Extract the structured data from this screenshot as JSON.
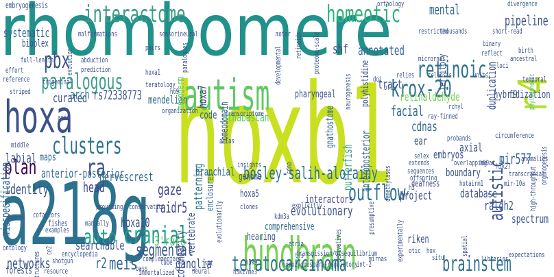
{
  "words": [
    {
      "text": "rhombomere",
      "color": "#21918c"
    },
    {
      "text": "hoxb1",
      "color": "#c8e020"
    },
    {
      "text": "a218g",
      "color": "#2c728e"
    },
    {
      "text": "hindbrain",
      "color": "#75d054"
    },
    {
      "text": "autism",
      "color": "#5ec962"
    },
    {
      "text": "hoxa",
      "color": "#3b528b"
    },
    {
      "text": "interactome",
      "color": "#3e9d87"
    },
    {
      "text": "homeotic",
      "color": "#2db27d"
    },
    {
      "text": "paralogous",
      "color": "#3e9d87"
    },
    {
      "text": "retinoic",
      "color": "#2c728e"
    },
    {
      "text": "pbx",
      "color": "#3b528b"
    },
    {
      "text": "krox-20",
      "color": "#2c728e"
    },
    {
      "text": "r4",
      "color": "#b5de2b"
    },
    {
      "text": "clusters",
      "color": "#2c728e"
    },
    {
      "text": "plan",
      "color": "#440154"
    },
    {
      "text": "ra",
      "color": "#3b528b"
    },
    {
      "text": "bosley-salih-alorainy",
      "color": "#2c728e"
    },
    {
      "text": "outflow",
      "color": "#2c728e"
    },
    {
      "text": "auto",
      "color": "#1f9e89"
    },
    {
      "text": "cranial",
      "color": "#1f9e89"
    },
    {
      "text": "teratocarcinoma",
      "color": "#2c728e"
    },
    {
      "text": "brainstem",
      "color": "#2c728e"
    },
    {
      "text": "segmental",
      "color": "#3b528b"
    },
    {
      "text": "meis",
      "color": "#31688e"
    },
    {
      "text": "autistic",
      "color": "#3b528b"
    },
    {
      "text": "mental",
      "color": "#31688e"
    },
    {
      "text": "shf",
      "color": "#414487"
    },
    {
      "text": "annotated",
      "color": "#31688e"
    },
    {
      "text": "pipeline",
      "color": "#3b528b"
    },
    {
      "text": "mir577",
      "color": "#31688e"
    },
    {
      "text": "raidr5",
      "color": "#414487"
    },
    {
      "text": "hoxa10",
      "color": "#3b528b"
    },
    {
      "text": "gaze",
      "color": "#414487"
    },
    {
      "text": "3'rare",
      "color": "#5ec962"
    },
    {
      "text": "r2",
      "color": "#31688e"
    },
    {
      "text": "r3",
      "color": "#31688e"
    },
    {
      "text": "head",
      "color": "#414487"
    },
    {
      "text": "nervescrest",
      "color": "#31688e"
    },
    {
      "text": "identity",
      "color": "#3b528b"
    },
    {
      "text": "anterior-posterior",
      "color": "#31688e"
    },
    {
      "text": "labial",
      "color": "#3b528b"
    },
    {
      "text": "maps",
      "color": "#31688e"
    },
    {
      "text": "curated",
      "color": "#3b528b"
    },
    {
      "text": "arch",
      "color": "#2c728e"
    },
    {
      "text": "rs72338773",
      "color": "#3b528b"
    },
    {
      "text": "systematic",
      "color": "#31688e"
    },
    {
      "text": "biοplex",
      "color": "#3b528b"
    },
    {
      "text": "misspecification",
      "color": "#31688e"
    },
    {
      "text": "embryogenesis",
      "color": "#3b528b"
    },
    {
      "text": "networks",
      "color": "#3b528b"
    },
    {
      "text": "searchable",
      "color": "#3b528b"
    },
    {
      "text": "ganglia",
      "color": "#3b528b"
    },
    {
      "text": "forests",
      "color": "#3b528b"
    },
    {
      "text": "colinearity",
      "color": "#3b528b"
    },
    {
      "text": "mendelian",
      "color": "#31688e"
    },
    {
      "text": "mesoderm",
      "color": "#5ec962"
    },
    {
      "text": "hoxa7",
      "color": "#414487"
    },
    {
      "text": "homeodomain",
      "color": "#3b528b"
    },
    {
      "text": "athabascan",
      "color": "#5ec962"
    },
    {
      "text": "code",
      "color": "#31688e"
    },
    {
      "text": "patterning",
      "color": "#2c728e"
    },
    {
      "text": "branchial",
      "color": "#31688e"
    },
    {
      "text": "vertebrate",
      "color": "#3b528b"
    },
    {
      "text": "enclosures",
      "color": "#31688e"
    },
    {
      "text": "gnathostome",
      "color": "#31688e"
    },
    {
      "text": "tract",
      "color": "#3b528b"
    },
    {
      "text": "pharyngeal",
      "color": "#3b528b"
    },
    {
      "text": "retinaldehyde",
      "color": "#75d054"
    },
    {
      "text": "facial",
      "color": "#31688e"
    },
    {
      "text": "pufferfish",
      "color": "#3e9d87"
    },
    {
      "text": "anteroposterior",
      "color": "#31688e"
    },
    {
      "text": "polyhistidine",
      "color": "#3b528b"
    },
    {
      "text": "territory",
      "color": "#3b528b"
    },
    {
      "text": "duplication",
      "color": "#3b528b"
    },
    {
      "text": "hybridization",
      "color": "#3b528b"
    },
    {
      "text": "cdnas",
      "color": "#31688e"
    },
    {
      "text": "ear",
      "color": "#3b528b"
    },
    {
      "text": "embryos",
      "color": "#3b528b"
    },
    {
      "text": "axial",
      "color": "#3b528b"
    },
    {
      "text": "boundary",
      "color": "#3b528b"
    },
    {
      "text": "project",
      "color": "#3b528b"
    },
    {
      "text": "database",
      "color": "#3b528b"
    },
    {
      "text": "raldh2",
      "color": "#3b528b"
    },
    {
      "text": "spectrum",
      "color": "#3b528b"
    },
    {
      "text": "interactors",
      "color": "#414487"
    },
    {
      "text": "evolutionary",
      "color": "#3b528b"
    },
    {
      "text": "hearing",
      "color": "#3b528b"
    },
    {
      "text": "genome",
      "color": "#3b528b"
    },
    {
      "text": "hoxa5",
      "color": "#3b528b"
    },
    {
      "text": "comprehensive",
      "color": "#31688e"
    },
    {
      "text": "riken",
      "color": "#3b528b"
    },
    {
      "text": "f9",
      "color": "#3b528b"
    },
    {
      "text": "orthology",
      "color": "#3b528b"
    },
    {
      "text": "divergence",
      "color": "#31688e"
    },
    {
      "text": "phylogenetic",
      "color": "#5ec962"
    },
    {
      "text": "mir-10a",
      "color": "#3b528b"
    },
    {
      "text": "deafness",
      "color": "#414487"
    },
    {
      "text": "hotairm1",
      "color": "#3b528b"
    },
    {
      "text": "h69ar",
      "color": "#3b528b"
    },
    {
      "text": "h3k27",
      "color": "#3b528b"
    },
    {
      "text": "h3k9",
      "color": "#3b528b"
    },
    {
      "text": "h3k27me3",
      "color": "#3b528b"
    },
    {
      "text": "mirnas",
      "color": "#3b528b"
    },
    {
      "text": "libraries",
      "color": "#3b528b"
    },
    {
      "text": "expectations",
      "color": "#3b528b"
    },
    {
      "text": "situ",
      "color": "#3b528b"
    },
    {
      "text": "spatial",
      "color": "#3b528b"
    },
    {
      "text": "homozygous",
      "color": "#3b528b"
    },
    {
      "text": "para-regulatory",
      "color": "#3b528b"
    },
    {
      "text": "int-2",
      "color": "#3b528b"
    },
    {
      "text": "transmission/disequilibrium",
      "color": "#3b528b"
    },
    {
      "text": "experimentally",
      "color": "#3b528b"
    },
    {
      "text": "derivatives",
      "color": "#3b528b"
    },
    {
      "text": "tfs",
      "color": "#3b528b"
    },
    {
      "text": "atria",
      "color": "#3b528b"
    },
    {
      "text": "tube",
      "color": "#3b528b"
    },
    {
      "text": "set",
      "color": "#3b528b"
    },
    {
      "text": "shotgun",
      "color": "#3b528b"
    },
    {
      "text": "bass",
      "color": "#3b528b"
    },
    {
      "text": "complementary",
      "color": "#3b528b"
    },
    {
      "text": "neural",
      "color": "#3b528b"
    },
    {
      "text": "immortalized",
      "color": "#3b528b"
    },
    {
      "text": "resource",
      "color": "#3b528b"
    },
    {
      "text": "ce2",
      "color": "#3b528b"
    },
    {
      "text": "structures",
      "color": "#3b528b"
    },
    {
      "text": "ontology",
      "color": "#3b528b"
    },
    {
      "text": "encyclopedia",
      "color": "#3b528b"
    },
    {
      "text": "examples",
      "color": "#3b528b"
    },
    {
      "text": "fishes",
      "color": "#3b528b"
    },
    {
      "text": "cofactors",
      "color": "#3b528b"
    },
    {
      "text": "manually",
      "color": "#3b528b"
    },
    {
      "text": "providing",
      "color": "#3b528b"
    },
    {
      "text": "fourth",
      "color": "#3b528b"
    },
    {
      "text": "conservation",
      "color": "#3b528b"
    },
    {
      "text": "reference",
      "color": "#3b528b"
    },
    {
      "text": "middle",
      "color": "#3b528b"
    },
    {
      "text": "axis",
      "color": "#3b528b"
    },
    {
      "text": "striped",
      "color": "#3b528b"
    },
    {
      "text": "trigeminal",
      "color": "#3b528b"
    },
    {
      "text": "effort",
      "color": "#3b528b"
    },
    {
      "text": "full-length",
      "color": "#3b528b"
    },
    {
      "text": "evolution",
      "color": "#3b528b"
    },
    {
      "text": "malformations",
      "color": "#3b528b"
    },
    {
      "text": "abduction",
      "color": "#3b528b"
    },
    {
      "text": "prediction",
      "color": "#3b528b"
    },
    {
      "text": "sensorineural",
      "color": "#3b528b"
    },
    {
      "text": "pairs",
      "color": "#3b528b"
    },
    {
      "text": "hoxa1",
      "color": "#3b528b"
    },
    {
      "text": "paralogues",
      "color": "#3b528b"
    },
    {
      "text": "teratology",
      "color": "#3b528b"
    },
    {
      "text": "h69",
      "color": "#3b528b"
    },
    {
      "text": "organization",
      "color": "#3b528b"
    },
    {
      "text": "transcriptome",
      "color": "#3b528b"
    },
    {
      "text": "atlas",
      "color": "#3b528b"
    },
    {
      "text": "insights",
      "color": "#3b528b"
    },
    {
      "text": "clones",
      "color": "#3b528b"
    },
    {
      "text": "evolutionarily",
      "color": "#3b528b"
    },
    {
      "text": "kdm3a",
      "color": "#3b528b"
    },
    {
      "text": "explicitly",
      "color": "#3b528b"
    },
    {
      "text": "cdna",
      "color": "#3b528b"
    },
    {
      "text": "presumptive",
      "color": "#3b528b"
    },
    {
      "text": "demethylases",
      "color": "#3b528b"
    },
    {
      "text": "extends",
      "color": "#3b528b"
    },
    {
      "text": "sequences",
      "color": "#3b528b"
    },
    {
      "text": "offspring",
      "color": "#3b528b"
    },
    {
      "text": "selex",
      "color": "#3b528b"
    },
    {
      "text": "probands",
      "color": "#3b528b"
    },
    {
      "text": "overlapping",
      "color": "#3b528b"
    },
    {
      "text": "ray-finned",
      "color": "#3b528b"
    },
    {
      "text": "rchyl",
      "color": "#3b528b"
    },
    {
      "text": "circumference",
      "color": "#3b528b"
    },
    {
      "text": "high-throughput",
      "color": "#3b528b"
    },
    {
      "text": "organogenesis",
      "color": "#3b528b"
    },
    {
      "text": "anomalies",
      "color": "#3b528b"
    },
    {
      "text": "transcranial",
      "color": "#3b528b"
    },
    {
      "text": "oft",
      "color": "#3b528b"
    },
    {
      "text": "relies",
      "color": "#3b528b"
    },
    {
      "text": "teleosts",
      "color": "#3b528b"
    },
    {
      "text": "units",
      "color": "#3b528b"
    },
    {
      "text": "temporal",
      "color": "#3b528b"
    },
    {
      "text": "ancestral",
      "color": "#3b528b"
    },
    {
      "text": "birth",
      "color": "#3b528b"
    },
    {
      "text": "loci",
      "color": "#3b528b"
    },
    {
      "text": "reflect",
      "color": "#3b528b"
    },
    {
      "text": "binary",
      "color": "#3b528b"
    },
    {
      "text": "short-read",
      "color": "#3b528b"
    },
    {
      "text": "restricted",
      "color": "#3b528b"
    },
    {
      "text": "thousands",
      "color": "#3b528b"
    },
    {
      "text": "motor",
      "color": "#3b528b"
    },
    {
      "text": "retinoids",
      "color": "#3b528b"
    },
    {
      "text": "proteome-scale",
      "color": "#3b528b"
    },
    {
      "text": "developmental",
      "color": "#3b528b"
    },
    {
      "text": "neurogenesis",
      "color": "#3b528b"
    },
    {
      "text": "micrornas",
      "color": "#3b528b"
    },
    {
      "text": "doi",
      "color": "#3b528b"
    },
    {
      "text": "mir",
      "color": "#3b528b"
    },
    {
      "text": "h3",
      "color": "#3b528b"
    },
    {
      "text": "otic",
      "color": "#3b528b"
    },
    {
      "text": "hox",
      "color": "#3b528b"
    }
  ]
}
